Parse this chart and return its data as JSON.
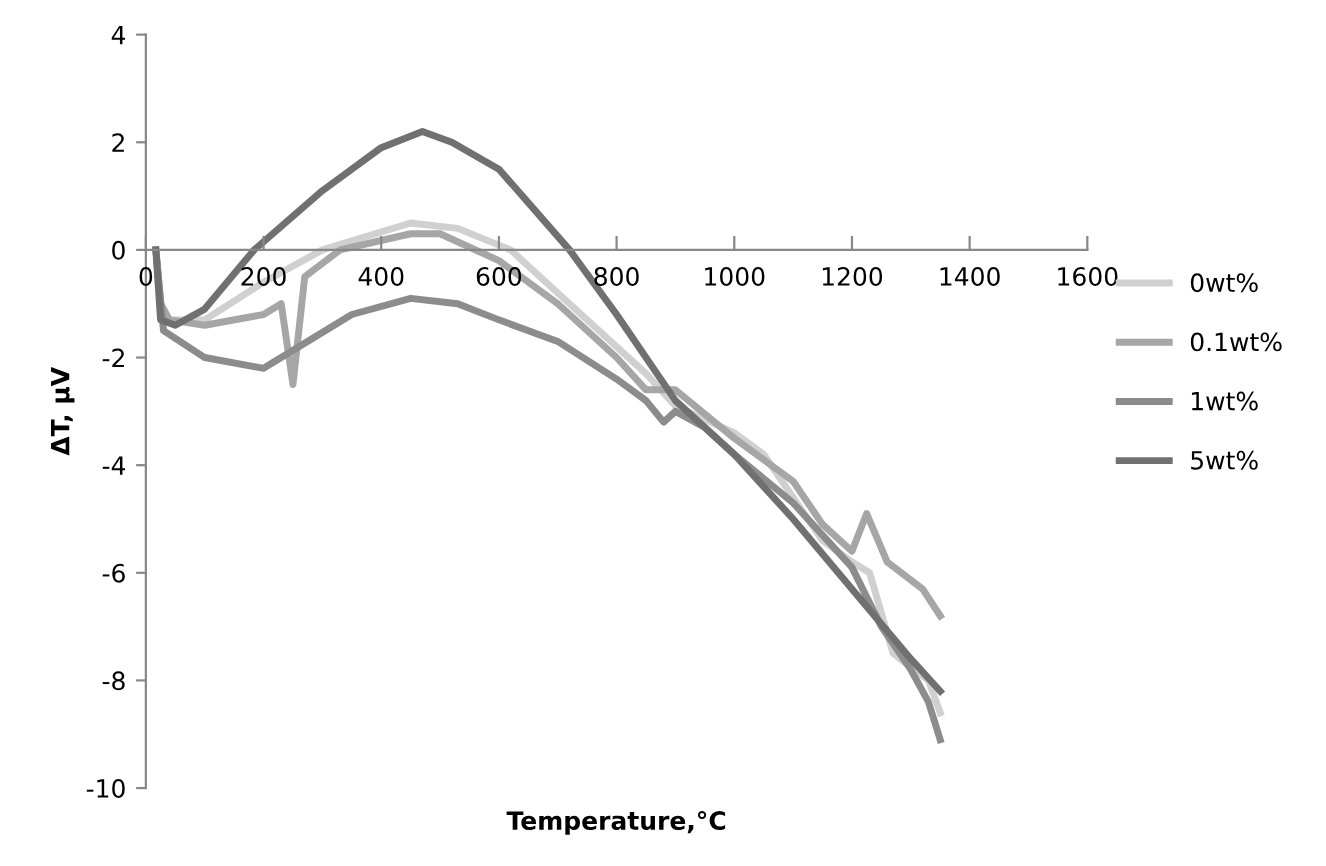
{
  "chart_data": {
    "type": "line",
    "xlabel": "Temperature,°C",
    "ylabel": "ΔT, μV",
    "xlim": [
      0,
      1600
    ],
    "xticks": [
      0,
      200,
      400,
      600,
      800,
      1000,
      1200,
      1400,
      1600
    ],
    "ylim": [
      -10,
      4
    ],
    "yticks": [
      -10,
      -8,
      -6,
      -4,
      -2,
      0,
      2,
      4
    ],
    "grid": false,
    "legend": "right",
    "marker": "none",
    "line_style": "solid",
    "series": [
      {
        "name": "0wt%",
        "color": "#d0d0d0",
        "x": [
          17,
          25,
          40,
          100,
          200,
          300,
          450,
          530,
          620,
          700,
          800,
          850,
          900,
          1000,
          1050,
          1100,
          1150,
          1200,
          1230,
          1270,
          1330,
          1350
        ],
        "values": [
          0,
          -1.0,
          -1.3,
          -1.3,
          -0.6,
          0,
          0.5,
          0.4,
          0,
          -0.8,
          -1.8,
          -2.3,
          -2.9,
          -3.4,
          -3.8,
          -4.6,
          -5.4,
          -5.8,
          -6.0,
          -7.5,
          -8.0,
          -8.6
        ]
      },
      {
        "name": "0.1wt%",
        "color": "#a6a6a6",
        "x": [
          17,
          25,
          40,
          100,
          200,
          230,
          250,
          270,
          330,
          450,
          500,
          600,
          700,
          800,
          850,
          900,
          1000,
          1100,
          1150,
          1200,
          1225,
          1260,
          1320,
          1350
        ],
        "values": [
          0,
          -1.0,
          -1.3,
          -1.4,
          -1.2,
          -1.0,
          -2.5,
          -0.5,
          0,
          0.3,
          0.3,
          -0.2,
          -1.0,
          -2.0,
          -2.6,
          -2.6,
          -3.5,
          -4.3,
          -5.1,
          -5.6,
          -4.9,
          -5.8,
          -6.3,
          -6.8
        ]
      },
      {
        "name": "1wt%",
        "color": "#8c8c8c",
        "x": [
          17,
          30,
          100,
          200,
          260,
          350,
          450,
          530,
          600,
          700,
          800,
          850,
          880,
          900,
          950,
          1000,
          1100,
          1200,
          1250,
          1300,
          1330,
          1350
        ],
        "values": [
          0,
          -1.5,
          -2.0,
          -2.2,
          -1.8,
          -1.2,
          -0.9,
          -1.0,
          -1.3,
          -1.7,
          -2.4,
          -2.8,
          -3.2,
          -3.0,
          -3.3,
          -3.8,
          -4.7,
          -5.9,
          -7.0,
          -7.8,
          -8.4,
          -9.1
        ]
      },
      {
        "name": "5wt%",
        "color": "#707070",
        "x": [
          17,
          25,
          50,
          100,
          184,
          300,
          400,
          470,
          520,
          600,
          720,
          800,
          900,
          1000,
          1100,
          1200,
          1300,
          1350
        ],
        "values": [
          0,
          -1.3,
          -1.4,
          -1.1,
          0,
          1.1,
          1.9,
          2.2,
          2.0,
          1.5,
          0,
          -1.2,
          -2.8,
          -3.8,
          -5.0,
          -6.3,
          -7.6,
          -8.2
        ]
      }
    ]
  }
}
